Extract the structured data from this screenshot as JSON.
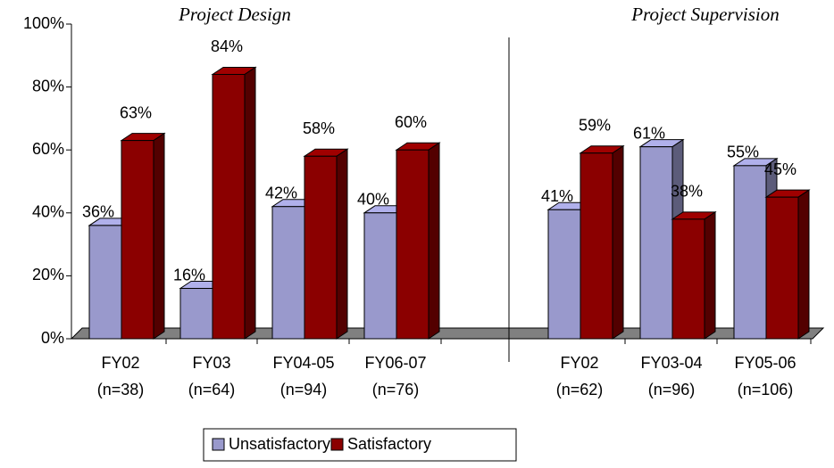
{
  "chart_data": {
    "type": "bar3d",
    "ylim": [
      0,
      100
    ],
    "yticks": [
      {
        "value": 0,
        "label": "0%"
      },
      {
        "value": 20,
        "label": "20%"
      },
      {
        "value": 40,
        "label": "40%"
      },
      {
        "value": 60,
        "label": "60%"
      },
      {
        "value": 80,
        "label": "80%"
      },
      {
        "value": 100,
        "label": "100%"
      }
    ],
    "series": [
      {
        "name": "Unsatisfactory",
        "color": "#9999cc"
      },
      {
        "name": "Satisfactory",
        "color": "#8b0000"
      }
    ],
    "groups": [
      {
        "title": "Project Design",
        "categories": [
          [
            "FY02",
            "(n=38)"
          ],
          [
            "FY03",
            "(n=64)"
          ],
          [
            "FY04-05",
            "(n=94)"
          ],
          [
            "FY06-07",
            "(n=76)"
          ]
        ],
        "values": [
          [
            36,
            16,
            42,
            40
          ],
          [
            63,
            84,
            58,
            60
          ]
        ],
        "value_labels": [
          [
            "36%",
            "16%",
            "42%",
            "40%"
          ],
          [
            "63%",
            "84%",
            "58%",
            "60%"
          ]
        ]
      },
      {
        "title": "Project Supervision",
        "categories": [
          [
            "FY02",
            "(n=62)"
          ],
          [
            "FY03-04",
            "(n=96)"
          ],
          [
            "FY05-06",
            "(n=106)"
          ]
        ],
        "values": [
          [
            41,
            61,
            55
          ],
          [
            59,
            38,
            45
          ]
        ],
        "value_labels": [
          [
            "41%",
            "61%",
            "55%"
          ],
          [
            "59%",
            "38%",
            "45%"
          ]
        ]
      }
    ],
    "legend": "bottom"
  }
}
